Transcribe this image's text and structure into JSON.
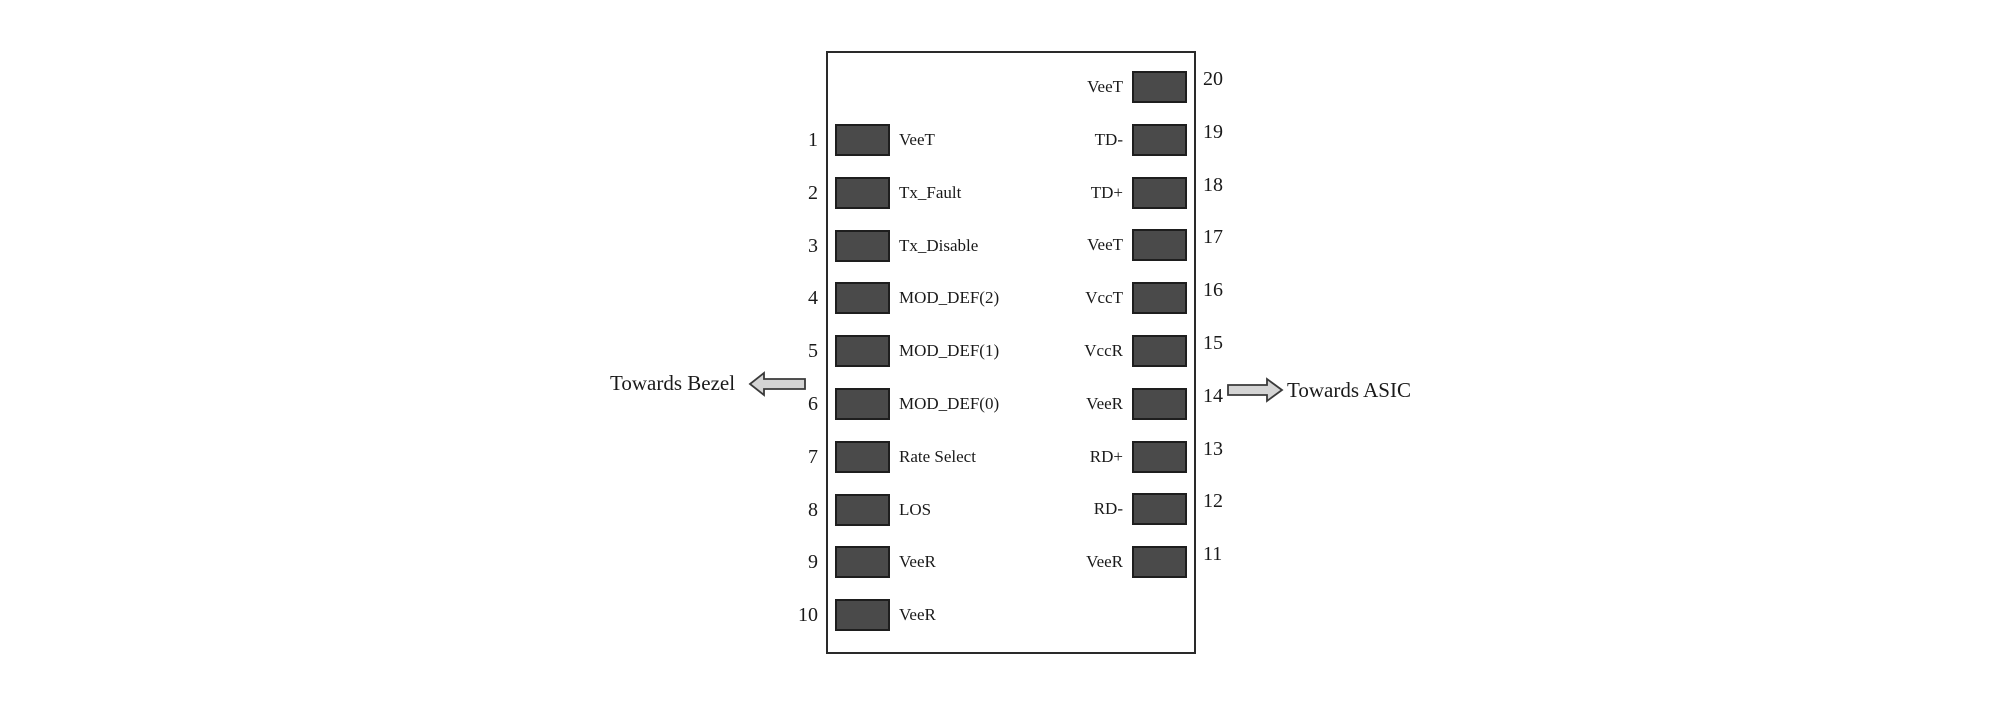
{
  "pins": {
    "left": [
      {
        "num": "1",
        "signal": "VeeT"
      },
      {
        "num": "2",
        "signal": "Tx_Fault"
      },
      {
        "num": "3",
        "signal": "Tx_Disable"
      },
      {
        "num": "4",
        "signal": "MOD_DEF(2)"
      },
      {
        "num": "5",
        "signal": "MOD_DEF(1)"
      },
      {
        "num": "6",
        "signal": "MOD_DEF(0)"
      },
      {
        "num": "7",
        "signal": "Rate Select"
      },
      {
        "num": "8",
        "signal": "LOS"
      },
      {
        "num": "9",
        "signal": "VeeR"
      },
      {
        "num": "10",
        "signal": "VeeR"
      }
    ],
    "right": [
      {
        "num": "20",
        "signal": "VeeT"
      },
      {
        "num": "19",
        "signal": "TD-"
      },
      {
        "num": "18",
        "signal": "TD+"
      },
      {
        "num": "17",
        "signal": "VeeT"
      },
      {
        "num": "16",
        "signal": "VccT"
      },
      {
        "num": "15",
        "signal": "VccR"
      },
      {
        "num": "14",
        "signal": "VeeR"
      },
      {
        "num": "13",
        "signal": "RD+"
      },
      {
        "num": "12",
        "signal": "RD-"
      },
      {
        "num": "11",
        "signal": "VeeR"
      }
    ]
  },
  "directions": {
    "left_label": "Towards Bezel",
    "right_label": "Towards ASIC"
  },
  "colors": {
    "pad_fill": "#4a4a4a",
    "pad_border": "#1e1e1e",
    "box_border": "#2a2a2a",
    "arrow_fill": "#d4d4d4",
    "arrow_stroke": "#3a3a3a"
  }
}
